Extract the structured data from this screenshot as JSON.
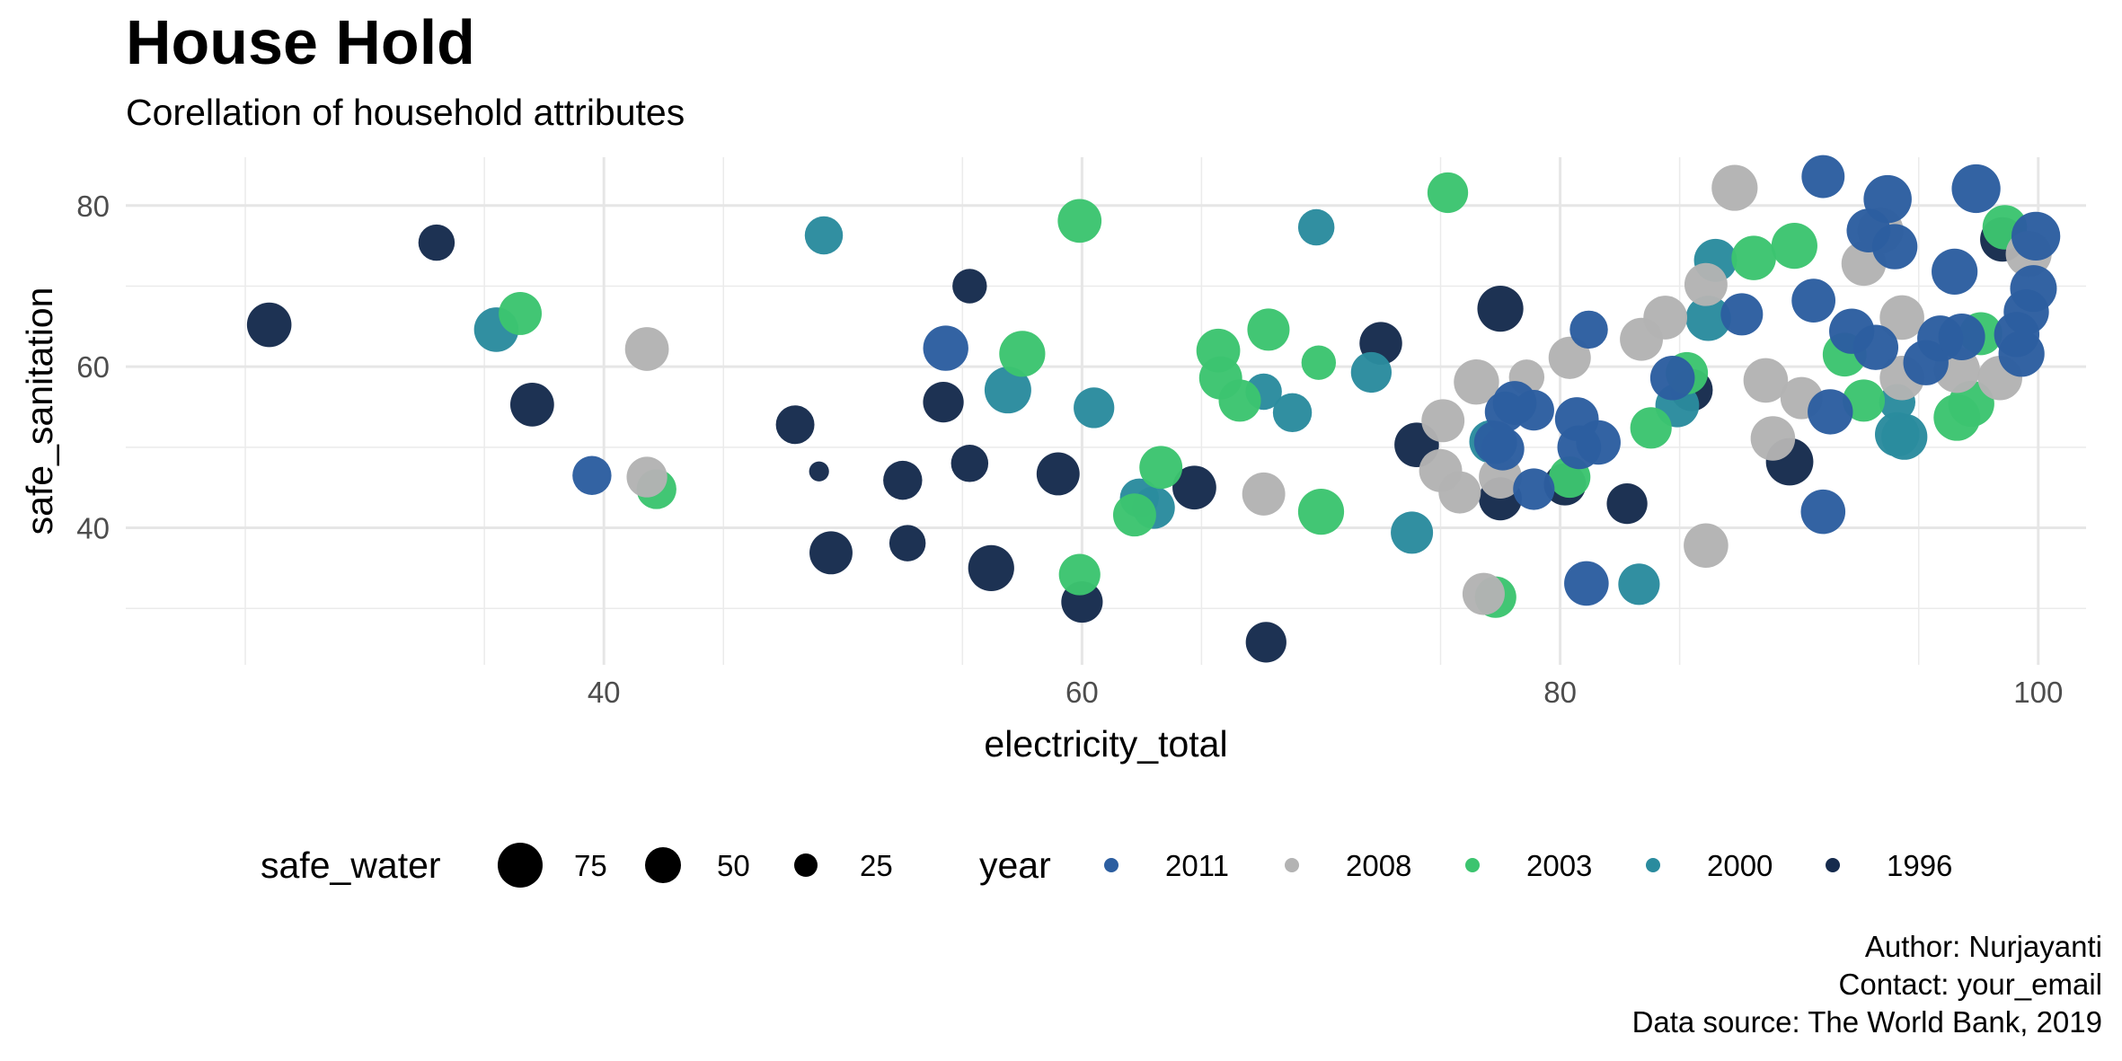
{
  "title": "House Hold",
  "subtitle": "Corellation of household attributes",
  "caption": [
    "Author: Nurjayanti",
    "Contact: your_email",
    "Data source: The World Bank, 2019"
  ],
  "chart_data": {
    "type": "scatter",
    "xlabel": "electricity_total",
    "ylabel": "safe_sanitation",
    "xlim": [
      20,
      102
    ],
    "ylim": [
      23,
      86
    ],
    "x_ticks": [
      40,
      60,
      80,
      100
    ],
    "y_ticks": [
      40,
      60,
      80
    ],
    "grid": true,
    "legend_position": "bottom",
    "size_legend": {
      "title": "safe_water",
      "entries": [
        75,
        50,
        25
      ]
    },
    "color_legend": {
      "title": "year",
      "entries": [
        {
          "label": "2011",
          "color": "#2c5ea0"
        },
        {
          "label": "2008",
          "color": "#b3b3b3"
        },
        {
          "label": "2003",
          "color": "#3cc46f"
        },
        {
          "label": "2000",
          "color": "#2a8b9e"
        },
        {
          "label": "1996",
          "color": "#162b4d"
        }
      ]
    },
    "series": [
      {
        "name": "1996",
        "color": "#162b4d",
        "points": [
          {
            "x": 26.0,
            "y": 65.2,
            "size": 60
          },
          {
            "x": 33.0,
            "y": 75.4,
            "size": 40
          },
          {
            "x": 37.0,
            "y": 55.3,
            "size": 58
          },
          {
            "x": 48.0,
            "y": 52.8,
            "size": 45
          },
          {
            "x": 49.0,
            "y": 47.0,
            "size": 12
          },
          {
            "x": 49.5,
            "y": 36.9,
            "size": 56
          },
          {
            "x": 52.5,
            "y": 45.9,
            "size": 46
          },
          {
            "x": 52.7,
            "y": 38.1,
            "size": 40
          },
          {
            "x": 54.2,
            "y": 55.6,
            "size": 50
          },
          {
            "x": 55.3,
            "y": 48.0,
            "size": 42
          },
          {
            "x": 55.3,
            "y": 70.0,
            "size": 36
          },
          {
            "x": 56.2,
            "y": 35.0,
            "size": 64
          },
          {
            "x": 59.0,
            "y": 46.7,
            "size": 56
          },
          {
            "x": 60.0,
            "y": 30.8,
            "size": 52
          },
          {
            "x": 64.7,
            "y": 45.0,
            "size": 58
          },
          {
            "x": 67.7,
            "y": 25.8,
            "size": 50
          },
          {
            "x": 72.5,
            "y": 62.9,
            "size": 55
          },
          {
            "x": 74.0,
            "y": 50.3,
            "size": 60
          },
          {
            "x": 77.5,
            "y": 67.2,
            "size": 64
          },
          {
            "x": 77.5,
            "y": 43.6,
            "size": 56
          },
          {
            "x": 80.2,
            "y": 45.4,
            "size": 54
          },
          {
            "x": 82.8,
            "y": 43.0,
            "size": 50
          },
          {
            "x": 85.5,
            "y": 57.1,
            "size": 54
          },
          {
            "x": 89.6,
            "y": 48.2,
            "size": 68
          },
          {
            "x": 98.5,
            "y": 75.8,
            "size": 60
          }
        ]
      },
      {
        "name": "2000",
        "color": "#2a8b9e",
        "points": [
          {
            "x": 35.5,
            "y": 64.6,
            "size": 60
          },
          {
            "x": 49.2,
            "y": 76.3,
            "size": 44
          },
          {
            "x": 56.9,
            "y": 57.1,
            "size": 66
          },
          {
            "x": 60.5,
            "y": 54.9,
            "size": 50
          },
          {
            "x": 62.4,
            "y": 43.7,
            "size": 46
          },
          {
            "x": 63.0,
            "y": 42.5,
            "size": 54
          },
          {
            "x": 67.6,
            "y": 56.9,
            "size": 40
          },
          {
            "x": 68.8,
            "y": 54.3,
            "size": 46
          },
          {
            "x": 69.8,
            "y": 77.3,
            "size": 40
          },
          {
            "x": 72.1,
            "y": 59.3,
            "size": 50
          },
          {
            "x": 73.8,
            "y": 39.4,
            "size": 54
          },
          {
            "x": 77.1,
            "y": 50.7,
            "size": 56
          },
          {
            "x": 83.3,
            "y": 33.0,
            "size": 52
          },
          {
            "x": 84.9,
            "y": 55.2,
            "size": 58
          },
          {
            "x": 86.2,
            "y": 66.0,
            "size": 62
          },
          {
            "x": 86.5,
            "y": 73.2,
            "size": 56
          },
          {
            "x": 94.1,
            "y": 51.6,
            "size": 60
          },
          {
            "x": 94.4,
            "y": 51.3,
            "size": 64
          },
          {
            "x": 94.1,
            "y": 55.6,
            "size": 40
          }
        ]
      },
      {
        "name": "2003",
        "color": "#3cc46f",
        "points": [
          {
            "x": 36.5,
            "y": 66.6,
            "size": 56
          },
          {
            "x": 42.2,
            "y": 44.8,
            "size": 48
          },
          {
            "x": 57.5,
            "y": 61.6,
            "size": 64
          },
          {
            "x": 59.9,
            "y": 78.1,
            "size": 58
          },
          {
            "x": 59.9,
            "y": 34.2,
            "size": 52
          },
          {
            "x": 62.2,
            "y": 41.6,
            "size": 56
          },
          {
            "x": 63.3,
            "y": 47.5,
            "size": 56
          },
          {
            "x": 65.7,
            "y": 62.0,
            "size": 58
          },
          {
            "x": 65.8,
            "y": 58.6,
            "size": 56
          },
          {
            "x": 66.6,
            "y": 55.8,
            "size": 54
          },
          {
            "x": 67.8,
            "y": 64.6,
            "size": 54
          },
          {
            "x": 69.9,
            "y": 60.5,
            "size": 36
          },
          {
            "x": 70.0,
            "y": 42.0,
            "size": 64
          },
          {
            "x": 75.3,
            "y": 81.6,
            "size": 50
          },
          {
            "x": 77.3,
            "y": 31.4,
            "size": 52
          },
          {
            "x": 80.4,
            "y": 46.3,
            "size": 52
          },
          {
            "x": 83.8,
            "y": 52.4,
            "size": 52
          },
          {
            "x": 85.3,
            "y": 59.2,
            "size": 54
          },
          {
            "x": 88.1,
            "y": 73.5,
            "size": 60
          },
          {
            "x": 89.8,
            "y": 75.0,
            "size": 64
          },
          {
            "x": 91.9,
            "y": 61.5,
            "size": 58
          },
          {
            "x": 92.7,
            "y": 55.8,
            "size": 54
          },
          {
            "x": 96.6,
            "y": 53.7,
            "size": 66
          },
          {
            "x": 97.2,
            "y": 55.4,
            "size": 64
          },
          {
            "x": 97.6,
            "y": 64.1,
            "size": 56
          },
          {
            "x": 98.6,
            "y": 77.3,
            "size": 60
          }
        ]
      },
      {
        "name": "2008",
        "color": "#b3b3b3",
        "points": [
          {
            "x": 41.8,
            "y": 62.2,
            "size": 58
          },
          {
            "x": 41.8,
            "y": 46.3,
            "size": 50
          },
          {
            "x": 67.6,
            "y": 44.2,
            "size": 56
          },
          {
            "x": 75.1,
            "y": 53.3,
            "size": 56
          },
          {
            "x": 75.0,
            "y": 47.1,
            "size": 56
          },
          {
            "x": 75.8,
            "y": 44.4,
            "size": 54
          },
          {
            "x": 76.5,
            "y": 58.1,
            "size": 62
          },
          {
            "x": 76.8,
            "y": 31.8,
            "size": 54
          },
          {
            "x": 77.5,
            "y": 46.3,
            "size": 56
          },
          {
            "x": 78.6,
            "y": 58.7,
            "size": 38
          },
          {
            "x": 80.4,
            "y": 61.1,
            "size": 54
          },
          {
            "x": 83.4,
            "y": 63.4,
            "size": 56
          },
          {
            "x": 84.4,
            "y": 66.1,
            "size": 58
          },
          {
            "x": 86.1,
            "y": 70.2,
            "size": 56
          },
          {
            "x": 86.1,
            "y": 37.8,
            "size": 60
          },
          {
            "x": 87.3,
            "y": 82.2,
            "size": 64
          },
          {
            "x": 88.6,
            "y": 58.3,
            "size": 60
          },
          {
            "x": 88.9,
            "y": 51.1,
            "size": 60
          },
          {
            "x": 90.1,
            "y": 56.1,
            "size": 54
          },
          {
            "x": 92.7,
            "y": 72.8,
            "size": 60
          },
          {
            "x": 93.4,
            "y": 76.9,
            "size": 64
          },
          {
            "x": 94.3,
            "y": 66.1,
            "size": 60
          },
          {
            "x": 94.3,
            "y": 58.6,
            "size": 60
          },
          {
            "x": 96.6,
            "y": 59.6,
            "size": 64
          },
          {
            "x": 98.4,
            "y": 58.6,
            "size": 60
          },
          {
            "x": 99.6,
            "y": 74.0,
            "size": 64
          }
        ]
      },
      {
        "name": "2011",
        "color": "#2c5ea0",
        "points": [
          {
            "x": 39.5,
            "y": 46.5,
            "size": 46
          },
          {
            "x": 54.3,
            "y": 62.3,
            "size": 62
          },
          {
            "x": 77.3,
            "y": 50.6,
            "size": 56
          },
          {
            "x": 77.6,
            "y": 49.8,
            "size": 56
          },
          {
            "x": 77.7,
            "y": 54.4,
            "size": 50
          },
          {
            "x": 78.1,
            "y": 55.5,
            "size": 58
          },
          {
            "x": 78.9,
            "y": 54.6,
            "size": 50
          },
          {
            "x": 78.9,
            "y": 44.8,
            "size": 52
          },
          {
            "x": 80.7,
            "y": 53.5,
            "size": 58
          },
          {
            "x": 80.8,
            "y": 50.0,
            "size": 58
          },
          {
            "x": 81.1,
            "y": 33.1,
            "size": 60
          },
          {
            "x": 81.6,
            "y": 50.6,
            "size": 60
          },
          {
            "x": 81.2,
            "y": 64.6,
            "size": 44
          },
          {
            "x": 84.7,
            "y": 58.6,
            "size": 60
          },
          {
            "x": 87.6,
            "y": 66.5,
            "size": 54
          },
          {
            "x": 90.6,
            "y": 68.2,
            "size": 58
          },
          {
            "x": 91.0,
            "y": 83.6,
            "size": 56
          },
          {
            "x": 91.0,
            "y": 42.0,
            "size": 60
          },
          {
            "x": 91.3,
            "y": 54.4,
            "size": 62
          },
          {
            "x": 92.2,
            "y": 64.4,
            "size": 62
          },
          {
            "x": 92.9,
            "y": 76.9,
            "size": 58
          },
          {
            "x": 93.2,
            "y": 62.4,
            "size": 62
          },
          {
            "x": 93.7,
            "y": 80.8,
            "size": 70
          },
          {
            "x": 94.0,
            "y": 74.9,
            "size": 62
          },
          {
            "x": 95.3,
            "y": 60.5,
            "size": 62
          },
          {
            "x": 95.9,
            "y": 63.5,
            "size": 64
          },
          {
            "x": 96.5,
            "y": 71.8,
            "size": 64
          },
          {
            "x": 96.8,
            "y": 63.7,
            "size": 66
          },
          {
            "x": 97.4,
            "y": 82.1,
            "size": 72
          },
          {
            "x": 99.1,
            "y": 64.0,
            "size": 62
          },
          {
            "x": 99.3,
            "y": 61.6,
            "size": 64
          },
          {
            "x": 99.5,
            "y": 66.8,
            "size": 62
          },
          {
            "x": 99.8,
            "y": 69.7,
            "size": 66
          },
          {
            "x": 99.9,
            "y": 76.2,
            "size": 72
          }
        ]
      }
    ]
  }
}
